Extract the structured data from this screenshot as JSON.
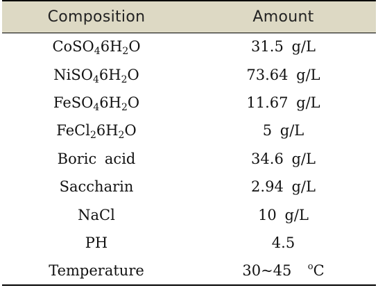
{
  "table": {
    "headers": [
      "Composition",
      "Amount"
    ],
    "rows": [
      {
        "composition": {
          "a": "CoSO",
          "s1": "4",
          "b": "6H",
          "s2": "2",
          "c": "O"
        },
        "amount": "31.5  g/L"
      },
      {
        "composition": {
          "a": "NiSO",
          "s1": "4",
          "b": "6H",
          "s2": "2",
          "c": "O"
        },
        "amount": "73.64  g/L"
      },
      {
        "composition": {
          "a": "FeSO",
          "s1": "4",
          "b": "6H",
          "s2": "2",
          "c": "O"
        },
        "amount": "11.67  g/L"
      },
      {
        "composition": {
          "a": "FeCl",
          "s1": "2",
          "b": "6H",
          "s2": "2",
          "c": "O"
        },
        "amount": "5  g/L"
      },
      {
        "composition": "Boric  acid",
        "amount": "34.6  g/L"
      },
      {
        "composition": "Saccharin",
        "amount": "2.94  g/L"
      },
      {
        "composition": "NaCl",
        "amount": "10  g/L"
      },
      {
        "composition": "PH",
        "amount": "4.5"
      },
      {
        "composition": "Temperature",
        "amount": {
          "value": "30~45  ",
          "sup": "o",
          "unit": "C"
        }
      }
    ]
  }
}
